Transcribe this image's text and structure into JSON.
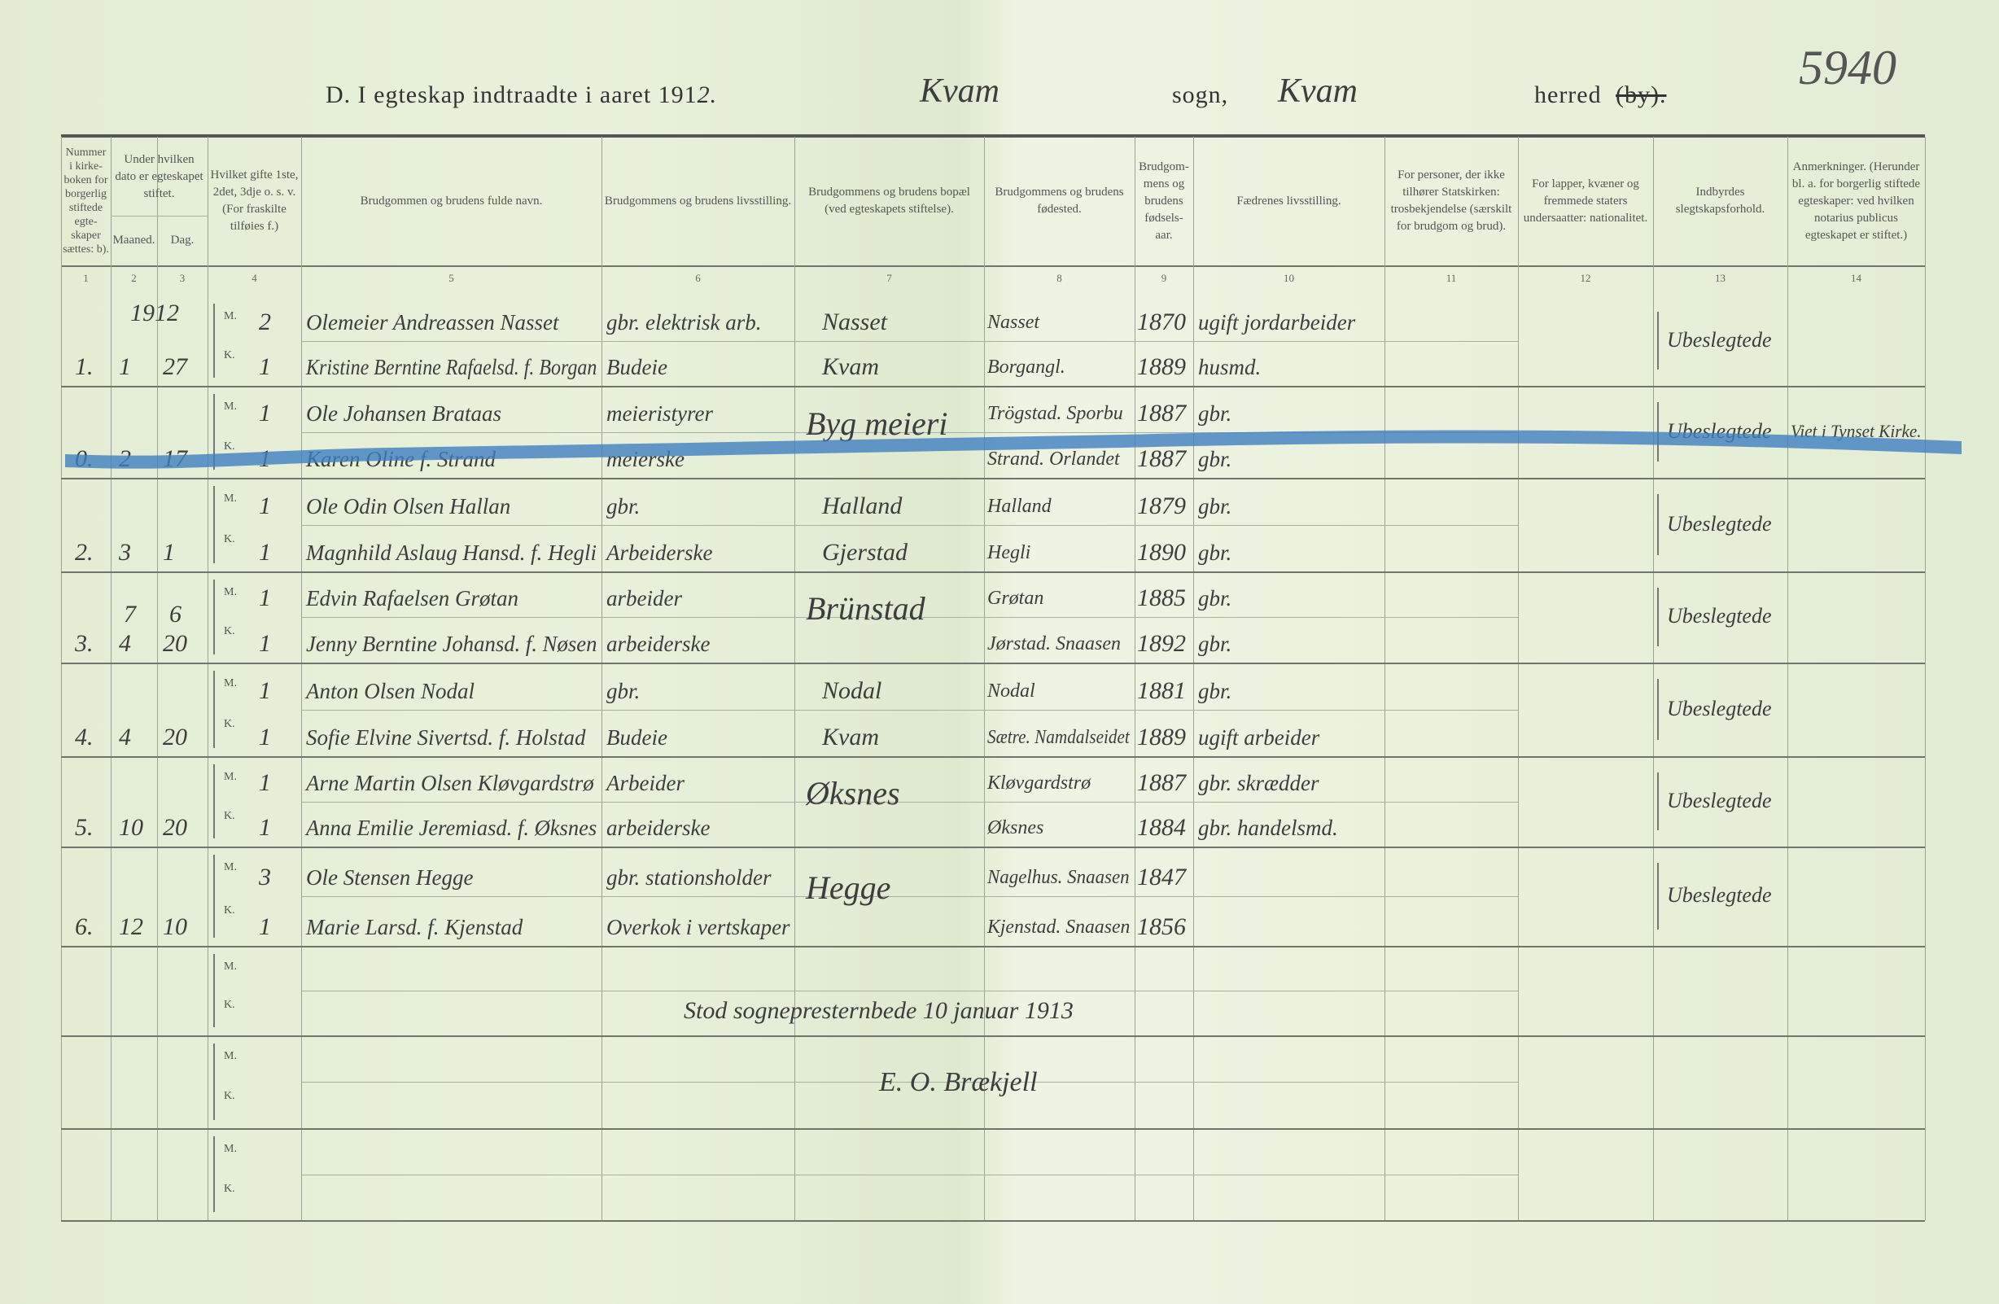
{
  "page_number": "5940",
  "title": {
    "prefix": "D.  I egteskap indtraadte i aaret 191",
    "year_digit": "2.",
    "parish_value": "Kvam",
    "parish_label": "sogn,",
    "district_value": "Kvam",
    "district_label": "herred",
    "district_struck": "(by)."
  },
  "columns": [
    {
      "num": "1",
      "header": "Nummer i kirke-boken for borgerlig stiftede egte-skaper sættes: b)."
    },
    {
      "num": "2",
      "header": "Maaned."
    },
    {
      "num": "3",
      "header": "Dag."
    },
    {
      "num": "4",
      "header": "Hvilket gifte 1ste, 2det, 3dje o. s. v. (For fraskilte tilføies f.)"
    },
    {
      "num": "5",
      "header": "Brudgommen og brudens fulde navn."
    },
    {
      "num": "6",
      "header": "Brudgommens og brudens livsstilling."
    },
    {
      "num": "7",
      "header": "Brudgommens og brudens bopæl (ved egteskapets stiftelse)."
    },
    {
      "num": "8",
      "header": "Brudgommens og brudens fødested."
    },
    {
      "num": "9",
      "header": "Brudgom-mens og brudens fødsels-aar."
    },
    {
      "num": "10",
      "header": "Fædrenes livsstilling."
    },
    {
      "num": "11",
      "header": "For personer, der ikke tilhører Statskirken: trosbekjendelse (særskilt for brudgom og brud)."
    },
    {
      "num": "12",
      "header": "For lapper, kvæner og fremmede staters undersaatter: nationalitet."
    },
    {
      "num": "13",
      "header": "Indbyrdes slegtskapsforhold."
    },
    {
      "num": "14",
      "header": "Anmerkninger. (Herunder bl. a. for borgerlig stiftede egteskaper: ved hvilken notarius publicus egteskapet er stiftet.)"
    }
  ],
  "date_group_header": "Under hvilken dato er egteskapet stiftet.",
  "labels": {
    "groom": "M.",
    "bride": "K."
  },
  "year_note": "1912",
  "entries": [
    {
      "no": "1.",
      "month": "1",
      "day": "27",
      "groom": {
        "order": "2",
        "name": "Olemeier Andreassen Nasset",
        "occupation": "gbr. elektrisk arb.",
        "residence": "Nasset",
        "birthplace": "Nasset",
        "birthyear": "1870",
        "father": "ugift jordarbeider"
      },
      "bride": {
        "order": "1",
        "name": "Kristine Berntine Rafaelsd. f. Borgan",
        "occupation": "Budeie",
        "residence": "Kvam",
        "birthplace": "Borgangl.",
        "birthyear": "1889",
        "father": "husmd."
      },
      "relation": "Ubeslegtede",
      "remarks": ""
    },
    {
      "no": "0.",
      "month": "2",
      "day": "17",
      "crossed": true,
      "groom": {
        "order": "1",
        "name": "Ole Johansen Brataas",
        "occupation": "meieristyrer",
        "residence": "Byg meieri",
        "birthplace": "Trögstad. Sporbu",
        "birthyear": "1887",
        "father": "gbr."
      },
      "bride": {
        "order": "1",
        "name": "Karen Oline f. Strand",
        "occupation": "meierske",
        "residence": "",
        "birthplace": "Strand. Orlandet",
        "birthyear": "1887",
        "father": "gbr."
      },
      "residence_shared": true,
      "relation": "Ubeslegtede",
      "remarks": "Viet i Tynset Kirke."
    },
    {
      "no": "2.",
      "month": "3",
      "day": "1",
      "groom": {
        "order": "1",
        "name": "Ole Odin Olsen Hallan",
        "occupation": "gbr.",
        "residence": "Halland",
        "birthplace": "Halland",
        "birthyear": "1879",
        "father": "gbr."
      },
      "bride": {
        "order": "1",
        "name": "Magnhild Aslaug Hansd. f. Hegli",
        "occupation": "Arbeiderske",
        "residence": "Gjerstad",
        "birthplace": "Hegli",
        "birthyear": "1890",
        "father": "gbr."
      },
      "relation": "Ubeslegtede",
      "remarks": ""
    },
    {
      "no": "3.",
      "month": "4",
      "month_correction": "7",
      "day": "20",
      "day_correction": "6",
      "groom": {
        "order": "1",
        "name": "Edvin Rafaelsen Grøtan",
        "occupation": "arbeider",
        "residence": "Brünstad",
        "birthplace": "Grøtan",
        "birthyear": "1885",
        "father": "gbr."
      },
      "bride": {
        "order": "1",
        "name": "Jenny Berntine Johansd. f. Nøsen",
        "occupation": "arbeiderske",
        "residence": "",
        "birthplace": "Jørstad. Snaasen",
        "birthyear": "1892",
        "father": "gbr."
      },
      "residence_shared": true,
      "relation": "Ubeslegtede",
      "remarks": ""
    },
    {
      "no": "4.",
      "month": "4",
      "day": "20",
      "groom": {
        "order": "1",
        "name": "Anton Olsen Nodal",
        "occupation": "gbr.",
        "residence": "Nodal",
        "birthplace": "Nodal",
        "birthyear": "1881",
        "father": "gbr."
      },
      "bride": {
        "order": "1",
        "name": "Sofie Elvine Sivertsd. f. Holstad",
        "occupation": "Budeie",
        "residence": "Kvam",
        "birthplace": "Sætre. Namdalseidet",
        "birthyear": "1889",
        "father": "ugift arbeider"
      },
      "relation": "Ubeslegtede",
      "remarks": ""
    },
    {
      "no": "5.",
      "month": "10",
      "day": "20",
      "groom": {
        "order": "1",
        "name": "Arne Martin Olsen Kløvgardstrø",
        "occupation": "Arbeider",
        "residence": "Øksnes",
        "birthplace": "Kløvgardstrø",
        "birthyear": "1887",
        "father": "gbr. skrædder"
      },
      "bride": {
        "order": "1",
        "name": "Anna Emilie Jeremiasd. f. Øksnes",
        "occupation": "arbeiderske",
        "residence": "",
        "birthplace": "Øksnes",
        "birthyear": "1884",
        "father": "gbr. handelsmd."
      },
      "residence_shared": true,
      "relation": "Ubeslegtede",
      "remarks": ""
    },
    {
      "no": "6.",
      "month": "12",
      "day": "10",
      "groom": {
        "order": "3",
        "name": "Ole Stensen Hegge",
        "occupation": "gbr. stationsholder",
        "residence": "Hegge",
        "birthplace": "Nagelhus. Snaasen",
        "birthyear": "1847",
        "father": ""
      },
      "bride": {
        "order": "1",
        "name": "Marie Larsd. f. Kjenstad",
        "occupation": "Overkok i vertskaper",
        "residence": "",
        "birthplace": "Kjenstad. Snaasen",
        "birthyear": "1856",
        "father": ""
      },
      "residence_shared": true,
      "relation": "Ubeslegtede",
      "remarks": ""
    },
    {
      "empty": true
    },
    {
      "empty": true
    },
    {
      "empty": true
    }
  ],
  "closing": {
    "place_date": "Stod sognepresternbede 10 januar 1913",
    "signature": "E. O. Brækjell"
  },
  "colors": {
    "paper": "#e7efd9",
    "ink": "#3d3d3d",
    "blue_pencil": "#3f7fc0"
  }
}
